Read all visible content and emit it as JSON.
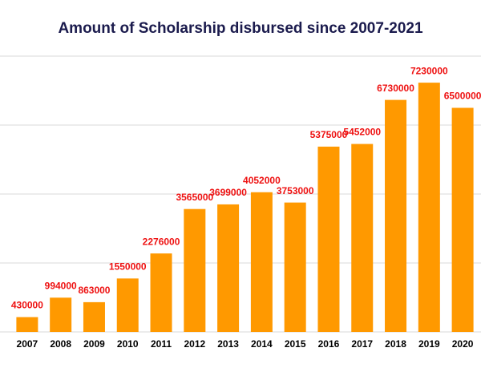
{
  "chart_data": {
    "type": "bar",
    "title": "Amount of Scholarship disbursed since 2007-2021",
    "categories": [
      "2007",
      "2008",
      "2009",
      "2010",
      "2011",
      "2012",
      "2013",
      "2014",
      "2015",
      "2016",
      "2017",
      "2018",
      "2019",
      "2020"
    ],
    "values": [
      430000,
      994000,
      863000,
      1550000,
      2276000,
      3565000,
      3699000,
      4052000,
      3753000,
      5375000,
      5452000,
      6730000,
      7230000,
      6500000
    ],
    "color": "#ff9900",
    "label_color": "#ee1111",
    "ylim": [
      0,
      8000000
    ],
    "yticks": [
      0,
      2000000,
      4000000,
      6000000,
      8000000
    ],
    "grid": true
  }
}
